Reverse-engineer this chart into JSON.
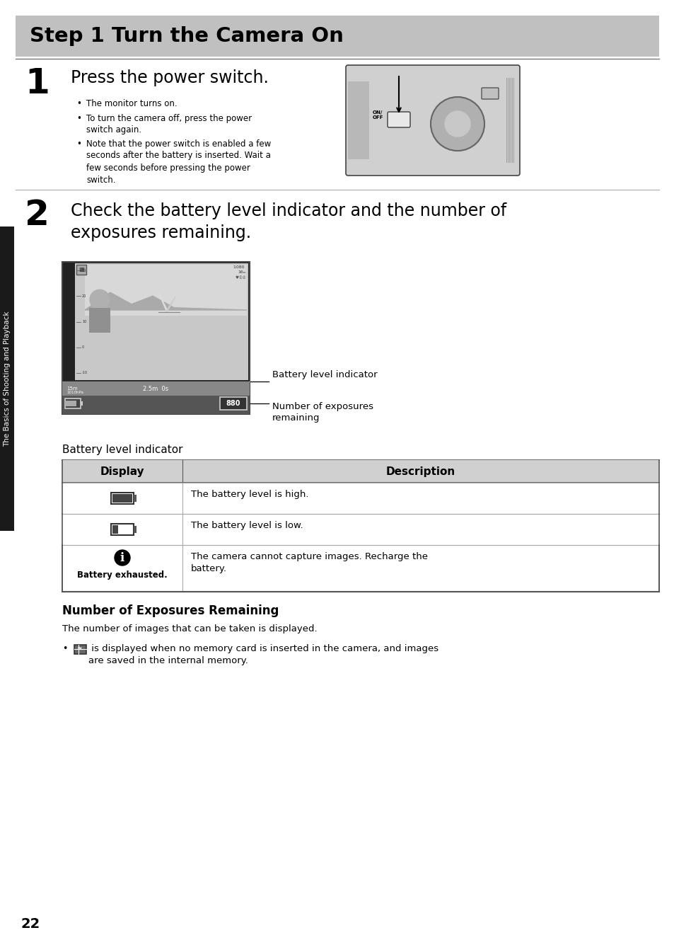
{
  "title": "Step 1 Turn the Camera On",
  "title_bg": "#c0c0c0",
  "page_bg": "#ffffff",
  "page_number": "22",
  "sidebar_text": "The Basics of Shooting and Playback",
  "sidebar_bg": "#1a1a1a",
  "step1_number": "1",
  "step1_heading": "Press the power switch.",
  "step1_bullets": [
    "The monitor turns on.",
    "To turn the camera off, press the power\nswitch again.",
    "Note that the power switch is enabled a few\nseconds after the battery is inserted. Wait a\nfew seconds before pressing the power\nswitch."
  ],
  "step2_number": "2",
  "step2_heading": "Check the battery level indicator and the number of\nexposures remaining.",
  "label1": "Battery level indicator",
  "label2": "Number of exposures\nremaining",
  "battery_table_title": "Battery level indicator",
  "table_header": [
    "Display",
    "Description"
  ],
  "table_header_bg": "#d0d0d0",
  "table_row1_desc": "The battery level is high.",
  "table_row2_desc": "The battery level is low.",
  "table_row3_desc": "The camera cannot capture images. Recharge the\nbattery.",
  "table_row3_icon_label": "Battery exhausted.",
  "exposures_title": "Number of Exposures Remaining",
  "exposures_para": "The number of images that can be taken is displayed.",
  "exposures_bullet_suffix": " is displayed when no memory card is inserted in the camera, and images\nare saved in the internal memory.",
  "line_color": "#aaaaaa",
  "table_line_color": "#999999",
  "table_outer_color": "#555555"
}
